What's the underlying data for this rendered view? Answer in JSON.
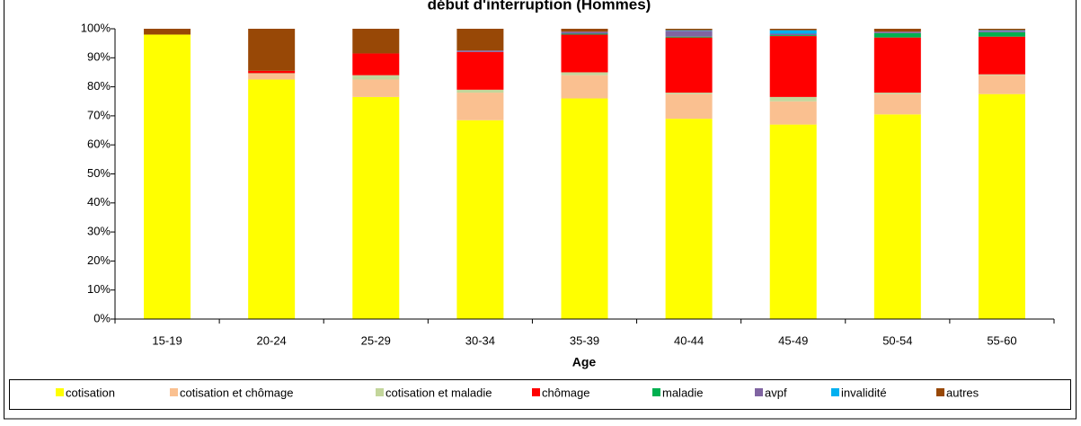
{
  "chart_data": {
    "type": "stacked_bar",
    "title": "début d'interruption (Hommes)",
    "x_label": "Age",
    "categories": [
      "15-19",
      "20-24",
      "25-29",
      "30-34",
      "35-39",
      "40-44",
      "45-49",
      "50-54",
      "55-60"
    ],
    "series": [
      {
        "name": "cotisation",
        "color": "#ffff00",
        "values": [
          98,
          82.5,
          76.5,
          68.5,
          76,
          69,
          67,
          70.5,
          77.5
        ]
      },
      {
        "name": "cotisation et chômage",
        "color": "#fac090",
        "values": [
          0,
          2,
          6,
          9.5,
          8,
          8.5,
          8,
          7,
          6.5
        ]
      },
      {
        "name": "cotisation et maladie",
        "color": "#c3d69b",
        "values": [
          0,
          0.2,
          1.5,
          1,
          1,
          0.5,
          1.5,
          0.5,
          0.3
        ]
      },
      {
        "name": "chômage",
        "color": "#ff0000",
        "values": [
          0,
          0.8,
          7.5,
          13,
          13,
          19,
          21,
          19,
          13
        ]
      },
      {
        "name": "maladie",
        "color": "#00b050",
        "values": [
          0,
          0,
          0,
          0,
          0.3,
          0.3,
          0.3,
          1.5,
          1.5
        ]
      },
      {
        "name": "avpf",
        "color": "#8064a2",
        "values": [
          0,
          0,
          0,
          0.5,
          0.7,
          2,
          0.5,
          0.5,
          0.5
        ]
      },
      {
        "name": "invalidité",
        "color": "#00b0f0",
        "values": [
          0,
          0,
          0,
          0,
          0,
          0.2,
          1.2,
          0,
          0.2
        ]
      },
      {
        "name": "autres",
        "color": "#984806",
        "values": [
          2,
          14.5,
          8.5,
          7.5,
          1,
          0.5,
          0.5,
          1,
          0.5
        ]
      }
    ],
    "ylim": [
      0,
      100
    ],
    "yticks": [
      {
        "value": 0,
        "label": "0%"
      },
      {
        "value": 10,
        "label": "10%"
      },
      {
        "value": 20,
        "label": "20%"
      },
      {
        "value": 30,
        "label": "30%"
      },
      {
        "value": 40,
        "label": "40%"
      },
      {
        "value": 50,
        "label": "50%"
      },
      {
        "value": 60,
        "label": "60%"
      },
      {
        "value": 70,
        "label": "70%"
      },
      {
        "value": 80,
        "label": "80%"
      },
      {
        "value": 90,
        "label": "90%"
      },
      {
        "value": 100,
        "label": "100%"
      }
    ],
    "legend": "bottom"
  }
}
